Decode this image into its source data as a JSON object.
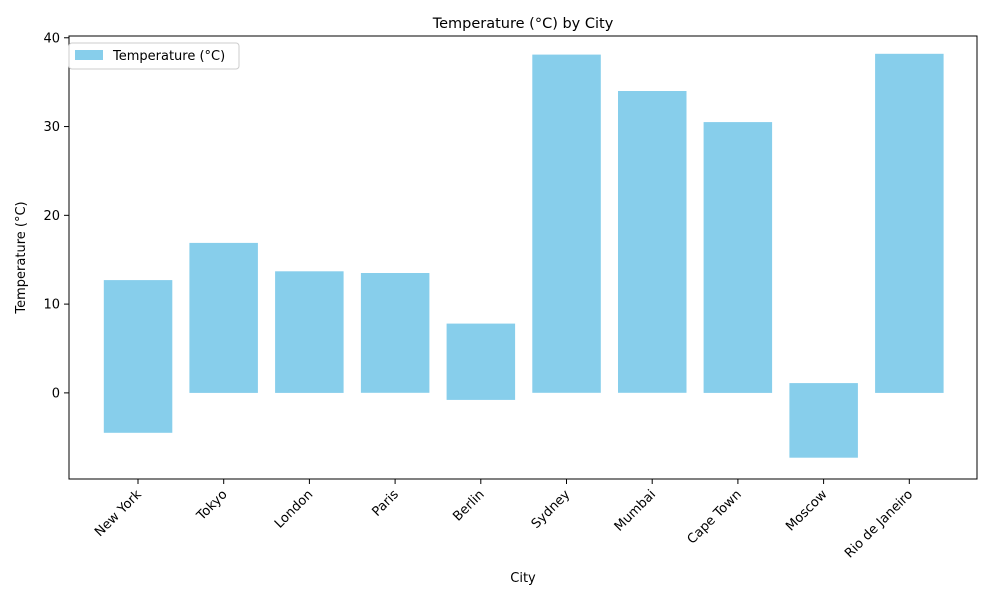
{
  "chart_data": {
    "type": "bar",
    "title": "Temperature (°C) by City",
    "xlabel": "City",
    "ylabel": "Temperature (°C)",
    "categories": [
      "New York",
      "Tokyo",
      "London",
      "Paris",
      "Berlin",
      "Sydney",
      "Mumbai",
      "Cape Town",
      "Moscow",
      "Rio de Janeiro"
    ],
    "series": [
      {
        "name": "Temperature (°C)",
        "color": "#87ceeb",
        "bars": [
          {
            "low": -4.5,
            "high": 12.7
          },
          {
            "low": 0,
            "high": 16.9
          },
          {
            "low": 0,
            "high": 13.7
          },
          {
            "low": 0,
            "high": 13.5
          },
          {
            "low": -0.8,
            "high": 7.8
          },
          {
            "low": 0,
            "high": 38.1
          },
          {
            "low": 0,
            "high": 34.0
          },
          {
            "low": 0,
            "high": 30.5
          },
          {
            "low": -7.3,
            "high": 1.1
          },
          {
            "low": 0,
            "high": 38.2
          }
        ]
      }
    ],
    "yticks": [
      0,
      10,
      20,
      30,
      40
    ],
    "ylim": [
      -9.7,
      40.2
    ],
    "grid": false,
    "legend_position": "top-left"
  }
}
